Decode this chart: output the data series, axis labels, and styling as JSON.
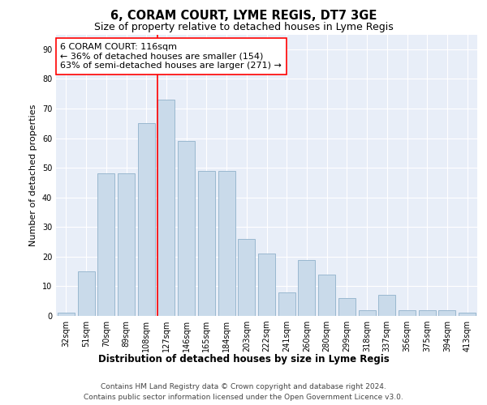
{
  "title": "6, CORAM COURT, LYME REGIS, DT7 3GE",
  "subtitle": "Size of property relative to detached houses in Lyme Regis",
  "xlabel": "Distribution of detached houses by size in Lyme Regis",
  "ylabel": "Number of detached properties",
  "categories": [
    "32sqm",
    "51sqm",
    "70sqm",
    "89sqm",
    "108sqm",
    "127sqm",
    "146sqm",
    "165sqm",
    "184sqm",
    "203sqm",
    "222sqm",
    "241sqm",
    "260sqm",
    "280sqm",
    "299sqm",
    "318sqm",
    "337sqm",
    "356sqm",
    "375sqm",
    "394sqm",
    "413sqm"
  ],
  "values": [
    1,
    15,
    48,
    48,
    65,
    73,
    59,
    49,
    49,
    26,
    21,
    8,
    19,
    14,
    6,
    2,
    7,
    2,
    2,
    2,
    1
  ],
  "bar_color": "#c9daea",
  "bar_edgecolor": "#9ab8d0",
  "bar_linewidth": 0.7,
  "vline_x": 4.57,
  "vline_color": "red",
  "vline_linewidth": 1.2,
  "annotation_text": "6 CORAM COURT: 116sqm\n← 36% of detached houses are smaller (154)\n63% of semi-detached houses are larger (271) →",
  "annotation_box_facecolor": "white",
  "annotation_box_edgecolor": "red",
  "annotation_fontsize": 8.0,
  "ylim_max": 95,
  "yticks": [
    0,
    10,
    20,
    30,
    40,
    50,
    60,
    70,
    80,
    90
  ],
  "fig_facecolor": "white",
  "plot_facecolor": "#e8eef8",
  "grid_color": "white",
  "grid_linewidth": 0.8,
  "title_fontsize": 10.5,
  "subtitle_fontsize": 9.0,
  "xlabel_fontsize": 8.5,
  "ylabel_fontsize": 8.0,
  "tick_fontsize": 7.0,
  "footer_line1": "Contains HM Land Registry data © Crown copyright and database right 2024.",
  "footer_line2": "Contains public sector information licensed under the Open Government Licence v3.0.",
  "footer_fontsize": 6.5
}
